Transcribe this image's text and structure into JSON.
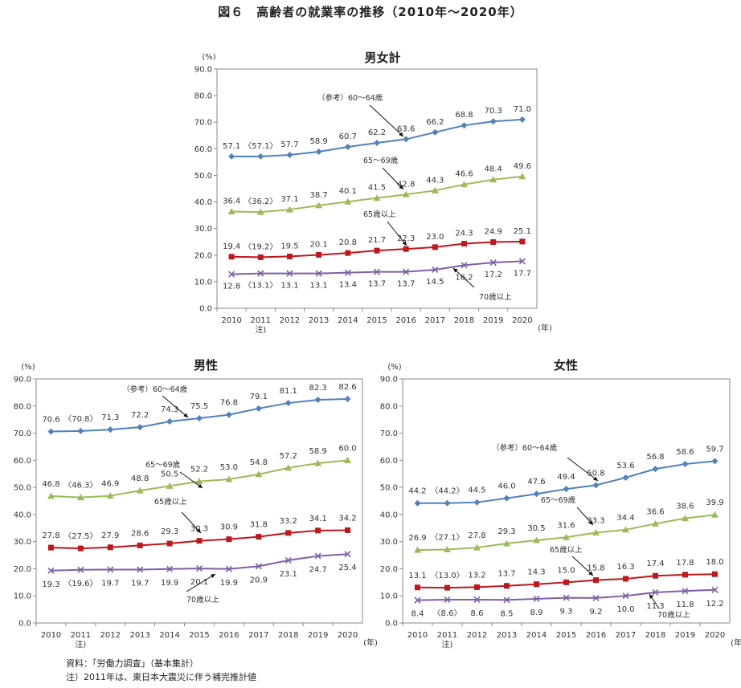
{
  "figure_title": "図６　高齢者の就業率の推移（2010年～2020年）",
  "footnotes": {
    "source": "資料：「労働力調査」（基本集計）",
    "note": "注）2011年は、東日本大震災に伴う補完推計値"
  },
  "colors": {
    "s60_64": "#4f81bd",
    "s65_69": "#9bbb59",
    "s65plus": "#c0161c",
    "s70plus": "#7f5fa5"
  },
  "chart_data": [
    {
      "id": "total",
      "type": "line",
      "title": "男女計",
      "unit": "(%)",
      "xunit": "(年)",
      "x": [
        "2010",
        "2011",
        "2012",
        "2013",
        "2014",
        "2015",
        "2016",
        "2017",
        "2018",
        "2019",
        "2020"
      ],
      "x_note": {
        "index": 1,
        "text": "注)"
      },
      "ylim": [
        0,
        90
      ],
      "yticks": [
        "0.0",
        "10.0",
        "20.0",
        "30.0",
        "40.0",
        "50.0",
        "60.0",
        "70.0",
        "80.0",
        "90.0"
      ],
      "series": [
        {
          "key": "s60_64",
          "name": "（参考）60～64歳",
          "marker": "diamond",
          "values": [
            57.1,
            57.1,
            57.7,
            58.9,
            60.7,
            62.2,
            63.6,
            66.2,
            68.8,
            70.3,
            71.0
          ],
          "labels": [
            "57.1",
            "〈57.1〉",
            "57.7",
            "58.9",
            "60.7",
            "62.2",
            "63.6",
            "66.2",
            "68.8",
            "70.3",
            "71.0"
          ]
        },
        {
          "key": "s65_69",
          "name": "65～69歳",
          "marker": "triangle",
          "values": [
            36.4,
            36.2,
            37.1,
            38.7,
            40.1,
            41.5,
            42.8,
            44.3,
            46.6,
            48.4,
            49.6
          ],
          "labels": [
            "36.4",
            "〈36.2〉",
            "37.1",
            "38.7",
            "40.1",
            "41.5",
            "42.8",
            "44.3",
            "46.6",
            "48.4",
            "49.6"
          ]
        },
        {
          "key": "s65plus",
          "name": "65歳以上",
          "marker": "square",
          "values": [
            19.4,
            19.2,
            19.5,
            20.1,
            20.8,
            21.7,
            22.3,
            23.0,
            24.3,
            24.9,
            25.1
          ],
          "labels": [
            "19.4",
            "〈19.2〉",
            "19.5",
            "20.1",
            "20.8",
            "21.7",
            "22.3",
            "23.0",
            "24.3",
            "24.9",
            "25.1"
          ]
        },
        {
          "key": "s70plus",
          "name": "70歳以上",
          "marker": "x",
          "values": [
            12.8,
            13.1,
            13.1,
            13.1,
            13.4,
            13.7,
            13.7,
            14.5,
            16.2,
            17.2,
            17.7
          ],
          "labels": [
            "12.8",
            "〈13.1〉",
            "13.1",
            "13.1",
            "13.4",
            "13.7",
            "13.7",
            "14.5",
            "16.2",
            "17.2",
            "17.7"
          ]
        }
      ]
    },
    {
      "id": "male",
      "type": "line",
      "title": "男性",
      "unit": "(%)",
      "xunit": "(年)",
      "x": [
        "2010",
        "2011",
        "2012",
        "2013",
        "2014",
        "2015",
        "2016",
        "2017",
        "2018",
        "2019",
        "2020"
      ],
      "x_note": {
        "index": 1,
        "text": "注)"
      },
      "ylim": [
        0,
        90
      ],
      "yticks": [
        "0.0",
        "10.0",
        "20.0",
        "30.0",
        "40.0",
        "50.0",
        "60.0",
        "70.0",
        "80.0",
        "90.0"
      ],
      "series": [
        {
          "key": "s60_64",
          "name": "（参考）60～64歳",
          "marker": "diamond",
          "values": [
            70.6,
            70.8,
            71.3,
            72.2,
            74.3,
            75.5,
            76.8,
            79.1,
            81.1,
            82.3,
            82.6
          ],
          "labels": [
            "70.6",
            "〈70.8〉",
            "71.3",
            "72.2",
            "74.3",
            "75.5",
            "76.8",
            "79.1",
            "81.1",
            "82.3",
            "82.6"
          ]
        },
        {
          "key": "s65_69",
          "name": "65～69歳",
          "marker": "triangle",
          "values": [
            46.8,
            46.3,
            46.9,
            48.8,
            50.5,
            52.2,
            53.0,
            54.8,
            57.2,
            58.9,
            60.0
          ],
          "labels": [
            "46.8",
            "〈46.3〉",
            "46.9",
            "48.8",
            "50.5",
            "52.2",
            "53.0",
            "54.8",
            "57.2",
            "58.9",
            "60.0"
          ]
        },
        {
          "key": "s65plus",
          "name": "65歳以上",
          "marker": "square",
          "values": [
            27.8,
            27.5,
            27.9,
            28.6,
            29.3,
            30.3,
            30.9,
            31.8,
            33.2,
            34.1,
            34.2
          ],
          "labels": [
            "27.8",
            "〈27.5〉",
            "27.9",
            "28.6",
            "29.3",
            "30.3",
            "30.9",
            "31.8",
            "33.2",
            "34.1",
            "34.2"
          ]
        },
        {
          "key": "s70plus",
          "name": "70歳以上",
          "marker": "x",
          "values": [
            19.3,
            19.6,
            19.7,
            19.7,
            19.9,
            20.1,
            19.9,
            20.9,
            23.1,
            24.7,
            25.4
          ],
          "labels": [
            "19.3",
            "〈19.6〉",
            "19.7",
            "19.7",
            "19.9",
            "20.1",
            "19.9",
            "20.9",
            "23.1",
            "24.7",
            "25.4"
          ]
        }
      ]
    },
    {
      "id": "female",
      "type": "line",
      "title": "女性",
      "unit": "(%)",
      "xunit": "(年)",
      "x": [
        "2010",
        "2011",
        "2012",
        "2013",
        "2014",
        "2015",
        "2016",
        "2017",
        "2018",
        "2019",
        "2020"
      ],
      "x_note": {
        "index": 1,
        "text": "注)"
      },
      "ylim": [
        0,
        90
      ],
      "yticks": [
        "0.0",
        "10.0",
        "20.0",
        "30.0",
        "40.0",
        "50.0",
        "60.0",
        "70.0",
        "80.0",
        "90.0"
      ],
      "series": [
        {
          "key": "s60_64",
          "name": "（参考）60～64歳",
          "marker": "diamond",
          "values": [
            44.2,
            44.2,
            44.5,
            46.0,
            47.6,
            49.4,
            50.8,
            53.6,
            56.8,
            58.6,
            59.7
          ],
          "labels": [
            "44.2",
            "〈44.2〉",
            "44.5",
            "46.0",
            "47.6",
            "49.4",
            "50.8",
            "53.6",
            "56.8",
            "58.6",
            "59.7"
          ]
        },
        {
          "key": "s65_69",
          "name": "65～69歳",
          "marker": "triangle",
          "values": [
            26.9,
            27.1,
            27.8,
            29.3,
            30.5,
            31.6,
            33.3,
            34.4,
            36.6,
            38.6,
            39.9
          ],
          "labels": [
            "26.9",
            "〈27.1〉",
            "27.8",
            "29.3",
            "30.5",
            "31.6",
            "33.3",
            "34.4",
            "36.6",
            "38.6",
            "39.9"
          ]
        },
        {
          "key": "s65plus",
          "name": "65歳以上",
          "marker": "square",
          "values": [
            13.1,
            13.0,
            13.2,
            13.7,
            14.3,
            15.0,
            15.8,
            16.3,
            17.4,
            17.8,
            18.0
          ],
          "labels": [
            "13.1",
            "〈13.0〉",
            "13.2",
            "13.7",
            "14.3",
            "15.0",
            "15.8",
            "16.3",
            "17.4",
            "17.8",
            "18.0"
          ]
        },
        {
          "key": "s70plus",
          "name": "70歳以上",
          "marker": "x",
          "values": [
            8.4,
            8.6,
            8.6,
            8.5,
            8.9,
            9.3,
            9.2,
            10.0,
            11.3,
            11.8,
            12.2
          ],
          "labels": [
            "8.4",
            "〈8.6〉",
            "8.6",
            "8.5",
            "8.9",
            "9.3",
            "9.2",
            "10.0",
            "11.3",
            "11.8",
            "12.2"
          ]
        }
      ]
    }
  ]
}
